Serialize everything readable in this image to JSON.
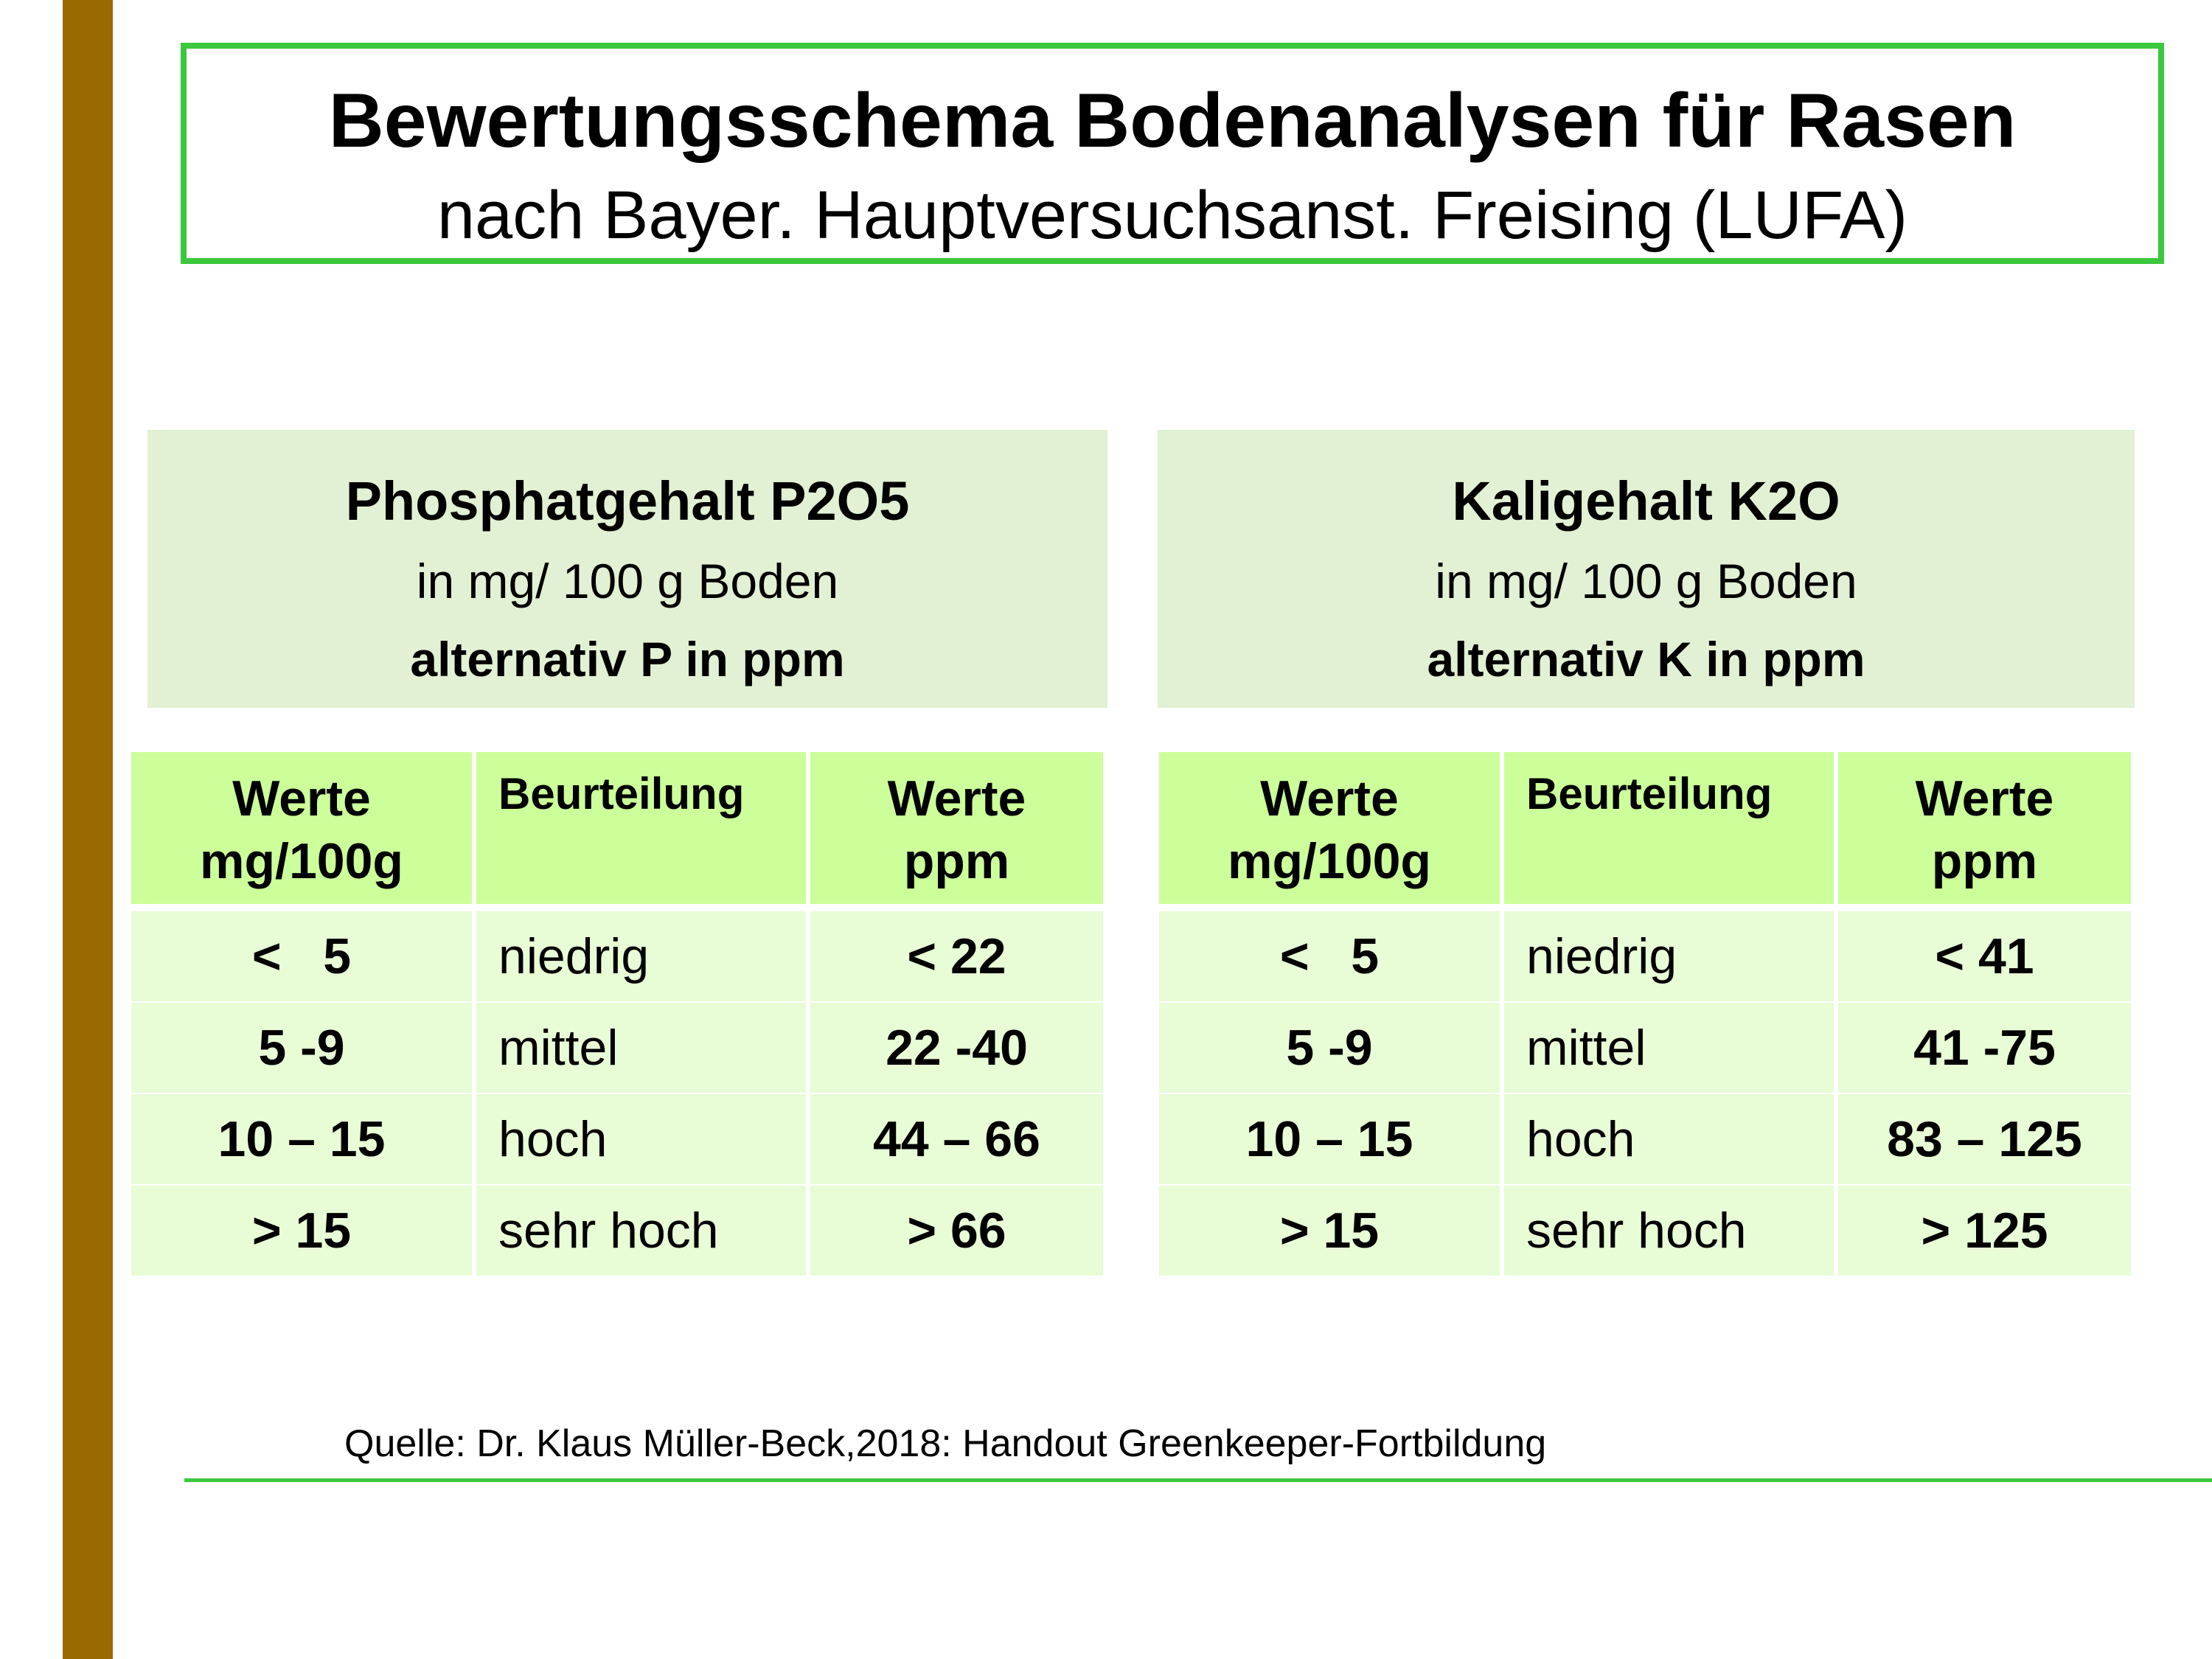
{
  "title": "Bewertungsschema Bodenanalysen für Rasen",
  "subtitle": "nach Bayer. Hauptversuchsanst. Freising (LUFA)",
  "panels": [
    {
      "title": "Phosphatgehalt P2O5",
      "unit": "in mg/ 100 g Boden",
      "alt": "alternativ P in ppm",
      "columns": {
        "mg_line1": "Werte",
        "mg_line2": "mg/100g",
        "rating": "Beurteilung",
        "ppm_line1": "Werte",
        "ppm_line2": "ppm"
      },
      "rows": [
        {
          "mg": "<   5",
          "rating": "niedrig",
          "ppm": "< 22"
        },
        {
          "mg": "5 -9",
          "rating": "mittel",
          "ppm": "22 -40"
        },
        {
          "mg": "10 – 15",
          "rating": "hoch",
          "ppm": "44 – 66"
        },
        {
          "mg": "> 15",
          "rating": "sehr hoch",
          "ppm": "> 66"
        }
      ]
    },
    {
      "title": "Kaligehalt K2O",
      "unit": "in mg/ 100 g Boden",
      "alt": "alternativ K in ppm",
      "columns": {
        "mg_line1": "Werte",
        "mg_line2": "mg/100g",
        "rating": "Beurteilung",
        "ppm_line1": "Werte",
        "ppm_line2": "ppm"
      },
      "rows": [
        {
          "mg": "<   5",
          "rating": "niedrig",
          "ppm": "< 41"
        },
        {
          "mg": "5 -9",
          "rating": "mittel",
          "ppm": "41 -75"
        },
        {
          "mg": "10 – 15",
          "rating": "hoch",
          "ppm": "83 – 125"
        },
        {
          "mg": "> 15",
          "rating": "sehr hoch",
          "ppm": "> 125"
        }
      ]
    }
  ],
  "source": "Quelle: Dr. Klaus Müller-Beck,2018: Handout Greenkeeper-Fortbildung",
  "colors": {
    "accent_bar": "#9a6a00",
    "frame_green": "#3cc83c",
    "header_green": "#ccff99",
    "row_green": "#e8fcd6",
    "panel_green": "#e2f0d4"
  }
}
